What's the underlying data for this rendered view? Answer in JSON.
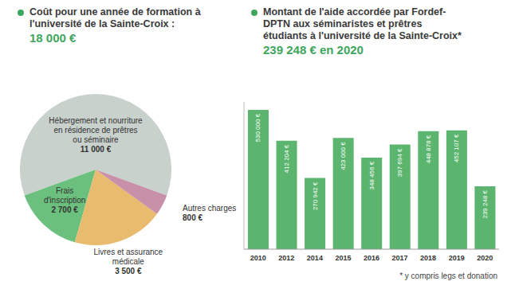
{
  "chart_data": [
    {
      "type": "pie",
      "title": "Coût pour une année de formation à l'université de la Sainte-Croix :",
      "subtitle": "18 000 €",
      "categories": [
        "Hébergement et nourriture en résidence de prêtres ou séminaire",
        "Frais d'inscription",
        "Livres et assurance médicale",
        "Autres charges"
      ],
      "values": [
        11000,
        2700,
        3500,
        800
      ],
      "value_labels": [
        "11 000 €",
        "2 700 €",
        "3 500 €",
        "800 €"
      ],
      "colors": [
        "#c9d1cd",
        "#6cc07e",
        "#e9bb6e",
        "#c990a9"
      ],
      "data_labels": true
    },
    {
      "type": "bar",
      "title": "Montant de l'aide accordée par Fordef-DPTN aux séminaristes et prêtres étudiants à l'université de la Sainte-Croix*",
      "subtitle": "239 248 € en 2020",
      "annotations": [
        "* y compris legs et donation"
      ],
      "categories": [
        "2010",
        "2012",
        "2014",
        "2015",
        "2016",
        "2017",
        "2018",
        "2019",
        "2020"
      ],
      "values": [
        530000,
        412204,
        270942,
        423000,
        348456,
        397694,
        448878,
        452107,
        239248
      ],
      "value_labels": [
        "530 000 €",
        "412 204 €",
        "270 942 €",
        "423 000 €",
        "348 456 €",
        "397 694 €",
        "448 878 €",
        "452 107 €",
        "239 248 €"
      ],
      "color": "#5bb56e",
      "ylim": [
        0,
        560000
      ],
      "yticks": [],
      "tick_labels": "x",
      "data_labels": true
    }
  ]
}
